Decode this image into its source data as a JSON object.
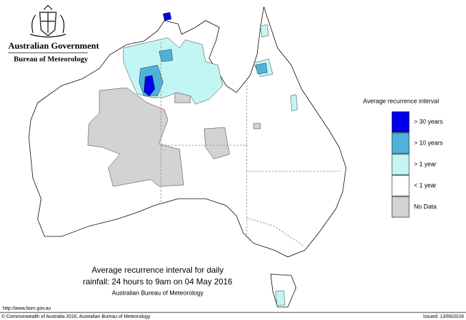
{
  "header": {
    "government": "Australian Government",
    "agency": "Bureau of Meteorology"
  },
  "legend": {
    "title": "Average recurrence interval",
    "items": [
      {
        "label": "> 30 years",
        "color": "#0000ee"
      },
      {
        "label": "> 10 years",
        "color": "#4fb3d9"
      },
      {
        "label": "> 1 year",
        "color": "#c4f5f5"
      },
      {
        "label": "< 1 year",
        "color": "#ffffff"
      },
      {
        "label": "No Data",
        "color": "#d3d3d3"
      }
    ]
  },
  "caption": {
    "lines": [
      "Average recurrence interval for daily",
      "rainfall: 24 hours to 9am on 04 May 2016",
      "Australian Bureau of Meteorology"
    ]
  },
  "footer": {
    "url": "http://www.bom.gov.au",
    "copyright": "© Commonwealth of Australia 2016, Australian Bureau of Meteorology",
    "issued": "Issued: 13/06/2016"
  }
}
